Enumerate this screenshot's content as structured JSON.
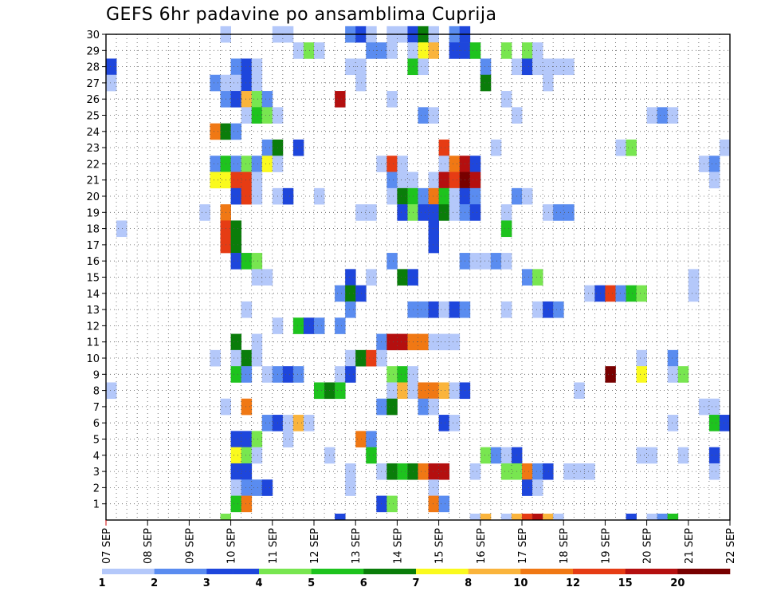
{
  "chart_data": {
    "type": "heatmap",
    "title": "GEFS 6hr padavine po ansamblima Cuprija",
    "y_categories": [
      "1",
      "2",
      "3",
      "4",
      "5",
      "6",
      "7",
      "8",
      "9",
      "10",
      "11",
      "12",
      "13",
      "14",
      "15",
      "16",
      "17",
      "18",
      "19",
      "20",
      "21",
      "22",
      "23",
      "24",
      "25",
      "26",
      "27",
      "28",
      "29",
      "30"
    ],
    "x_ticks": [
      "07 SEP",
      "08 SEP",
      "09 SEP",
      "10 SEP",
      "11 SEP",
      "12 SEP",
      "13 SEP",
      "14 SEP",
      "15 SEP",
      "16 SEP",
      "17 SEP",
      "18 SEP",
      "19 SEP",
      "20 SEP",
      "21 SEP",
      "22 SEP"
    ],
    "x_steps_per_day": 4,
    "x_range_steps": [
      0,
      60
    ],
    "grid": true,
    "color_scale": {
      "bins": [
        {
          "from": 1,
          "to": 2,
          "colors": [
            "#b4c8fa",
            "#b4c8fa"
          ]
        },
        {
          "from": 2,
          "to": 3,
          "colors": [
            "#5a8cf0",
            "#5a8cf0"
          ]
        },
        {
          "from": 3,
          "to": 4,
          "colors": [
            "#1e46dc",
            "#1e46dc"
          ]
        },
        {
          "from": 4,
          "to": 5,
          "colors": [
            "#78e650",
            "#78e650"
          ]
        },
        {
          "from": 5,
          "to": 6,
          "colors": [
            "#1ec31e",
            "#1ec31e"
          ]
        },
        {
          "from": 6,
          "to": 7,
          "colors": [
            "#0a7d0a",
            "#0a7d0a"
          ]
        },
        {
          "from": 7,
          "to": 8,
          "colors": [
            "#fafa1e",
            "#fafa1e"
          ]
        },
        {
          "from": 8,
          "to": 10,
          "colors": [
            "#fab43c",
            "#fab43c"
          ]
        },
        {
          "from": 10,
          "to": 12,
          "colors": [
            "#f07814",
            "#f07814"
          ]
        },
        {
          "from": 12,
          "to": 15,
          "colors": [
            "#e63c14",
            "#e63c14"
          ]
        },
        {
          "from": 15,
          "to": 20,
          "colors": [
            "#b40f0f",
            "#b40f0f"
          ]
        },
        {
          "from": 20,
          "to": 25,
          "colors": [
            "#780000",
            "#780000"
          ]
        }
      ],
      "labels": [
        "1",
        "2",
        "3",
        "4",
        "5",
        "6",
        "7",
        "8",
        "10",
        "12",
        "15",
        "20"
      ]
    },
    "cells": [
      [
        30,
        11,
        1
      ],
      [
        30,
        16,
        1
      ],
      [
        30,
        17,
        1
      ],
      [
        30,
        23,
        2
      ],
      [
        30,
        24,
        3
      ],
      [
        30,
        25,
        1
      ],
      [
        30,
        27,
        1
      ],
      [
        30,
        28,
        1
      ],
      [
        30,
        29,
        3
      ],
      [
        30,
        30,
        6
      ],
      [
        30,
        31,
        1
      ],
      [
        30,
        33,
        2
      ],
      [
        30,
        34,
        3
      ],
      [
        29,
        18,
        1
      ],
      [
        29,
        19,
        4
      ],
      [
        29,
        20,
        1
      ],
      [
        29,
        25,
        2
      ],
      [
        29,
        26,
        2
      ],
      [
        29,
        27,
        1
      ],
      [
        29,
        29,
        1
      ],
      [
        29,
        30,
        7
      ],
      [
        29,
        31,
        8
      ],
      [
        29,
        33,
        3
      ],
      [
        29,
        34,
        3
      ],
      [
        29,
        35,
        5
      ],
      [
        29,
        38,
        4
      ],
      [
        29,
        40,
        4
      ],
      [
        29,
        41,
        1
      ],
      [
        28,
        0,
        3
      ],
      [
        28,
        12,
        2
      ],
      [
        28,
        13,
        3
      ],
      [
        28,
        14,
        1
      ],
      [
        28,
        23,
        1
      ],
      [
        28,
        24,
        1
      ],
      [
        28,
        29,
        5
      ],
      [
        28,
        30,
        1
      ],
      [
        28,
        36,
        2
      ],
      [
        28,
        39,
        1
      ],
      [
        28,
        40,
        3
      ],
      [
        28,
        41,
        1
      ],
      [
        28,
        42,
        1
      ],
      [
        28,
        43,
        1
      ],
      [
        28,
        44,
        1
      ],
      [
        27,
        0,
        1
      ],
      [
        27,
        10,
        2
      ],
      [
        27,
        11,
        1
      ],
      [
        27,
        12,
        1
      ],
      [
        27,
        13,
        3
      ],
      [
        27,
        14,
        1
      ],
      [
        27,
        24,
        1
      ],
      [
        27,
        36,
        6
      ],
      [
        27,
        42,
        1
      ],
      [
        26,
        11,
        2
      ],
      [
        26,
        12,
        3
      ],
      [
        26,
        13,
        8
      ],
      [
        26,
        14,
        4
      ],
      [
        26,
        15,
        2
      ],
      [
        26,
        22,
        15
      ],
      [
        26,
        27,
        1
      ],
      [
        26,
        38,
        1
      ],
      [
        25,
        13,
        1
      ],
      [
        25,
        14,
        5
      ],
      [
        25,
        15,
        4
      ],
      [
        25,
        16,
        1
      ],
      [
        25,
        30,
        2
      ],
      [
        25,
        31,
        1
      ],
      [
        25,
        39,
        1
      ],
      [
        25,
        52,
        1
      ],
      [
        25,
        53,
        2
      ],
      [
        25,
        54,
        1
      ],
      [
        24,
        10,
        10
      ],
      [
        24,
        11,
        6
      ],
      [
        24,
        12,
        2
      ],
      [
        23,
        15,
        2
      ],
      [
        23,
        16,
        6
      ],
      [
        23,
        18,
        3
      ],
      [
        23,
        32,
        12
      ],
      [
        23,
        37,
        1
      ],
      [
        23,
        49,
        1
      ],
      [
        23,
        50,
        4
      ],
      [
        23,
        59,
        1
      ],
      [
        22,
        10,
        2
      ],
      [
        22,
        11,
        5
      ],
      [
        22,
        12,
        2
      ],
      [
        22,
        13,
        4
      ],
      [
        22,
        14,
        2
      ],
      [
        22,
        15,
        7
      ],
      [
        22,
        16,
        1
      ],
      [
        22,
        26,
        1
      ],
      [
        22,
        27,
        12
      ],
      [
        22,
        28,
        1
      ],
      [
        22,
        32,
        1
      ],
      [
        22,
        33,
        10
      ],
      [
        22,
        34,
        15
      ],
      [
        22,
        35,
        3
      ],
      [
        22,
        57,
        1
      ],
      [
        22,
        58,
        2
      ],
      [
        21,
        10,
        7
      ],
      [
        21,
        11,
        7
      ],
      [
        21,
        12,
        12
      ],
      [
        21,
        13,
        12
      ],
      [
        21,
        14,
        1
      ],
      [
        21,
        27,
        2
      ],
      [
        21,
        28,
        1
      ],
      [
        21,
        29,
        1
      ],
      [
        21,
        31,
        1
      ],
      [
        21,
        32,
        15
      ],
      [
        21,
        33,
        12
      ],
      [
        21,
        34,
        20
      ],
      [
        21,
        35,
        15
      ],
      [
        21,
        58,
        1
      ],
      [
        20,
        12,
        3
      ],
      [
        20,
        13,
        12
      ],
      [
        20,
        14,
        1
      ],
      [
        20,
        16,
        1
      ],
      [
        20,
        17,
        3
      ],
      [
        20,
        20,
        1
      ],
      [
        20,
        27,
        1
      ],
      [
        20,
        28,
        6
      ],
      [
        20,
        29,
        5
      ],
      [
        20,
        30,
        2
      ],
      [
        20,
        31,
        10
      ],
      [
        20,
        32,
        5
      ],
      [
        20,
        33,
        1
      ],
      [
        20,
        34,
        3
      ],
      [
        20,
        35,
        2
      ],
      [
        20,
        39,
        2
      ],
      [
        20,
        40,
        1
      ],
      [
        19,
        9,
        1
      ],
      [
        19,
        11,
        10
      ],
      [
        19,
        24,
        1
      ],
      [
        19,
        25,
        1
      ],
      [
        19,
        28,
        3
      ],
      [
        19,
        29,
        4
      ],
      [
        19,
        30,
        3
      ],
      [
        19,
        31,
        3
      ],
      [
        19,
        32,
        6
      ],
      [
        19,
        33,
        1
      ],
      [
        19,
        34,
        2
      ],
      [
        19,
        35,
        3
      ],
      [
        19,
        38,
        1
      ],
      [
        19,
        42,
        1
      ],
      [
        19,
        43,
        2
      ],
      [
        19,
        44,
        2
      ],
      [
        18,
        1,
        1
      ],
      [
        18,
        11,
        12
      ],
      [
        18,
        12,
        6
      ],
      [
        18,
        31,
        3
      ],
      [
        18,
        38,
        5
      ],
      [
        17,
        11,
        12
      ],
      [
        17,
        12,
        6
      ],
      [
        17,
        31,
        3
      ],
      [
        16,
        12,
        3
      ],
      [
        16,
        13,
        5
      ],
      [
        16,
        14,
        4
      ],
      [
        16,
        27,
        2
      ],
      [
        16,
        34,
        2
      ],
      [
        16,
        35,
        1
      ],
      [
        16,
        36,
        1
      ],
      [
        16,
        37,
        2
      ],
      [
        16,
        38,
        1
      ],
      [
        15,
        14,
        1
      ],
      [
        15,
        15,
        1
      ],
      [
        15,
        23,
        3
      ],
      [
        15,
        25,
        1
      ],
      [
        15,
        28,
        6
      ],
      [
        15,
        29,
        3
      ],
      [
        15,
        40,
        2
      ],
      [
        15,
        41,
        4
      ],
      [
        15,
        56,
        1
      ],
      [
        14,
        22,
        2
      ],
      [
        14,
        23,
        6
      ],
      [
        14,
        24,
        3
      ],
      [
        14,
        46,
        1
      ],
      [
        14,
        47,
        3
      ],
      [
        14,
        48,
        12
      ],
      [
        14,
        49,
        2
      ],
      [
        14,
        50,
        5
      ],
      [
        14,
        51,
        4
      ],
      [
        14,
        56,
        1
      ],
      [
        13,
        13,
        1
      ],
      [
        13,
        23,
        2
      ],
      [
        13,
        29,
        2
      ],
      [
        13,
        30,
        2
      ],
      [
        13,
        31,
        3
      ],
      [
        13,
        32,
        1
      ],
      [
        13,
        33,
        3
      ],
      [
        13,
        34,
        2
      ],
      [
        13,
        38,
        1
      ],
      [
        13,
        41,
        1
      ],
      [
        13,
        42,
        3
      ],
      [
        13,
        43,
        2
      ],
      [
        12,
        16,
        1
      ],
      [
        12,
        18,
        5
      ],
      [
        12,
        19,
        3
      ],
      [
        12,
        20,
        2
      ],
      [
        12,
        22,
        2
      ],
      [
        11,
        12,
        6
      ],
      [
        11,
        14,
        1
      ],
      [
        11,
        26,
        2
      ],
      [
        11,
        27,
        15
      ],
      [
        11,
        28,
        15
      ],
      [
        11,
        29,
        10
      ],
      [
        11,
        30,
        10
      ],
      [
        11,
        31,
        1
      ],
      [
        11,
        32,
        1
      ],
      [
        11,
        33,
        1
      ],
      [
        10,
        10,
        1
      ],
      [
        10,
        12,
        1
      ],
      [
        10,
        13,
        6
      ],
      [
        10,
        14,
        1
      ],
      [
        10,
        23,
        1
      ],
      [
        10,
        24,
        6
      ],
      [
        10,
        25,
        12
      ],
      [
        10,
        26,
        1
      ],
      [
        10,
        51,
        1
      ],
      [
        10,
        54,
        2
      ],
      [
        9,
        12,
        5
      ],
      [
        9,
        13,
        2
      ],
      [
        9,
        15,
        1
      ],
      [
        9,
        16,
        2
      ],
      [
        9,
        17,
        3
      ],
      [
        9,
        18,
        2
      ],
      [
        9,
        22,
        1
      ],
      [
        9,
        23,
        3
      ],
      [
        9,
        27,
        4
      ],
      [
        9,
        28,
        5
      ],
      [
        9,
        29,
        1
      ],
      [
        9,
        48,
        20
      ],
      [
        9,
        51,
        7
      ],
      [
        9,
        54,
        1
      ],
      [
        9,
        55,
        4
      ],
      [
        8,
        0,
        1
      ],
      [
        8,
        20,
        5
      ],
      [
        8,
        21,
        6
      ],
      [
        8,
        22,
        5
      ],
      [
        8,
        27,
        1
      ],
      [
        8,
        28,
        8
      ],
      [
        8,
        29,
        1
      ],
      [
        8,
        30,
        10
      ],
      [
        8,
        31,
        10
      ],
      [
        8,
        32,
        8
      ],
      [
        8,
        33,
        1
      ],
      [
        8,
        34,
        3
      ],
      [
        8,
        45,
        1
      ],
      [
        7,
        11,
        1
      ],
      [
        7,
        13,
        10
      ],
      [
        7,
        26,
        2
      ],
      [
        7,
        27,
        6
      ],
      [
        7,
        30,
        2
      ],
      [
        7,
        31,
        1
      ],
      [
        7,
        57,
        1
      ],
      [
        7,
        58,
        1
      ],
      [
        6,
        15,
        2
      ],
      [
        6,
        16,
        3
      ],
      [
        6,
        17,
        1
      ],
      [
        6,
        18,
        8
      ],
      [
        6,
        19,
        1
      ],
      [
        6,
        32,
        3
      ],
      [
        6,
        33,
        1
      ],
      [
        6,
        54,
        1
      ],
      [
        6,
        58,
        5
      ],
      [
        6,
        59,
        3
      ],
      [
        5,
        12,
        3
      ],
      [
        5,
        13,
        3
      ],
      [
        5,
        14,
        4
      ],
      [
        5,
        17,
        1
      ],
      [
        5,
        24,
        10
      ],
      [
        5,
        25,
        2
      ],
      [
        4,
        12,
        7
      ],
      [
        4,
        13,
        4
      ],
      [
        4,
        14,
        1
      ],
      [
        4,
        21,
        1
      ],
      [
        4,
        25,
        5
      ],
      [
        4,
        36,
        4
      ],
      [
        4,
        37,
        2
      ],
      [
        4,
        38,
        1
      ],
      [
        4,
        39,
        3
      ],
      [
        4,
        51,
        1
      ],
      [
        4,
        52,
        1
      ],
      [
        4,
        55,
        1
      ],
      [
        4,
        58,
        3
      ],
      [
        3,
        12,
        3
      ],
      [
        3,
        13,
        3
      ],
      [
        3,
        23,
        1
      ],
      [
        3,
        26,
        1
      ],
      [
        3,
        27,
        6
      ],
      [
        3,
        28,
        5
      ],
      [
        3,
        29,
        6
      ],
      [
        3,
        30,
        10
      ],
      [
        3,
        31,
        15
      ],
      [
        3,
        32,
        15
      ],
      [
        3,
        35,
        1
      ],
      [
        3,
        38,
        4
      ],
      [
        3,
        39,
        4
      ],
      [
        3,
        40,
        10
      ],
      [
        3,
        41,
        2
      ],
      [
        3,
        42,
        3
      ],
      [
        3,
        44,
        1
      ],
      [
        3,
        45,
        1
      ],
      [
        3,
        46,
        1
      ],
      [
        3,
        58,
        1
      ],
      [
        2,
        12,
        1
      ],
      [
        2,
        13,
        2
      ],
      [
        2,
        14,
        2
      ],
      [
        2,
        15,
        3
      ],
      [
        2,
        23,
        1
      ],
      [
        2,
        31,
        1
      ],
      [
        2,
        40,
        3
      ],
      [
        2,
        41,
        1
      ],
      [
        1,
        12,
        5
      ],
      [
        1,
        13,
        10
      ],
      [
        1,
        26,
        3
      ],
      [
        1,
        27,
        4
      ],
      [
        1,
        31,
        10
      ],
      [
        1,
        32,
        2
      ],
      [
        0,
        11,
        4
      ],
      [
        0,
        22,
        3
      ],
      [
        0,
        35,
        1
      ],
      [
        0,
        36,
        8
      ],
      [
        0,
        38,
        1
      ],
      [
        0,
        39,
        8
      ],
      [
        0,
        40,
        12
      ],
      [
        0,
        41,
        15
      ],
      [
        0,
        42,
        8
      ],
      [
        0,
        43,
        1
      ],
      [
        0,
        50,
        3
      ],
      [
        0,
        52,
        1
      ],
      [
        0,
        53,
        2
      ],
      [
        0,
        54,
        5
      ]
    ]
  }
}
